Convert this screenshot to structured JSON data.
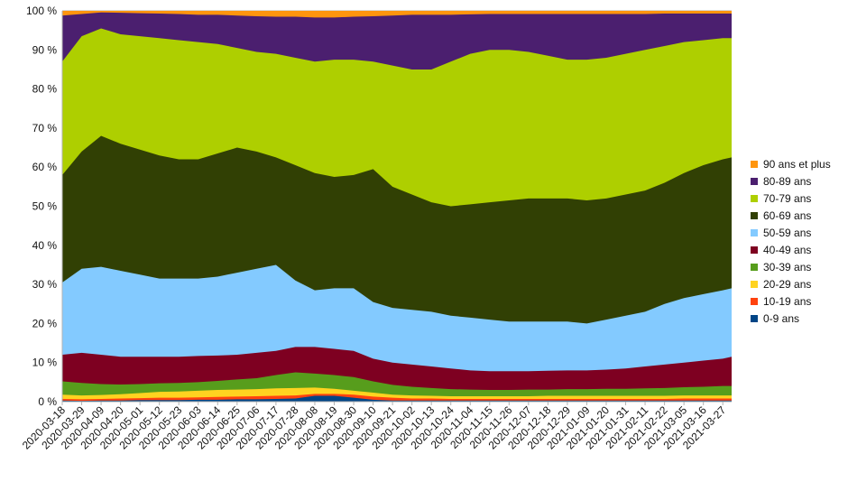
{
  "chart_data": {
    "type": "area",
    "stacked": true,
    "normalized": true,
    "grid": true,
    "legend_position": "right",
    "ylim": [
      0,
      100
    ],
    "y_ticks": [
      "0 %",
      "10 %",
      "20 %",
      "30 %",
      "40 %",
      "50 %",
      "60 %",
      "70 %",
      "80 %",
      "90 %",
      "100 %"
    ],
    "x_ticks": [
      "2020-03-18",
      "2020-03-29",
      "2020-04-09",
      "2020-04-20",
      "2020-05-01",
      "2020-05-12",
      "2020-05-23",
      "2020-06-03",
      "2020-06-14",
      "2020-06-25",
      "2020-07-06",
      "2020-07-17",
      "2020-07-28",
      "2020-08-08",
      "2020-08-19",
      "2020-08-30",
      "2020-09-10",
      "2020-09-21",
      "2020-10-02",
      "2020-10-13",
      "2020-10-24",
      "2020-11-04",
      "2020-11-15",
      "2020-11-26",
      "2020-12-07",
      "2020-12-18",
      "2020-12-29",
      "2021-01-09",
      "2021-01-20",
      "2021-01-31",
      "2021-02-11",
      "2021-02-22",
      "2021-03-05",
      "2021-03-16",
      "2021-03-27"
    ],
    "x": [
      "2020-03-18",
      "2020-03-29",
      "2020-04-09",
      "2020-04-20",
      "2020-05-01",
      "2020-05-12",
      "2020-05-23",
      "2020-06-03",
      "2020-06-14",
      "2020-06-25",
      "2020-07-06",
      "2020-07-17",
      "2020-07-28",
      "2020-08-08",
      "2020-08-19",
      "2020-08-30",
      "2020-09-10",
      "2020-09-21",
      "2020-10-02",
      "2020-10-13",
      "2020-10-24",
      "2020-11-04",
      "2020-11-15",
      "2020-11-26",
      "2020-12-07",
      "2020-12-18",
      "2020-12-29",
      "2021-01-09",
      "2021-01-20",
      "2021-01-31",
      "2021-02-11",
      "2021-02-22",
      "2021-03-05",
      "2021-03-16",
      "2021-03-27",
      "2021-04-01"
    ],
    "cumulative_boundaries_percent": [
      {
        "name": "0-9 ans",
        "values": [
          0.3,
          0.2,
          0.3,
          0.3,
          0.4,
          0.4,
          0.4,
          0.5,
          0.5,
          0.6,
          0.6,
          0.7,
          0.8,
          1.5,
          1.5,
          1.0,
          0.5,
          0.3,
          0.3,
          0.3,
          0.3,
          0.3,
          0.3,
          0.3,
          0.3,
          0.3,
          0.3,
          0.3,
          0.3,
          0.3,
          0.3,
          0.3,
          0.3,
          0.3,
          0.3,
          0.3
        ]
      },
      {
        "name": "10-19 ans",
        "values": [
          0.7,
          0.6,
          0.7,
          0.8,
          0.9,
          1.0,
          1.0,
          1.1,
          1.2,
          1.3,
          1.4,
          1.5,
          1.6,
          2.0,
          2.0,
          1.8,
          1.3,
          1.0,
          0.8,
          0.8,
          0.7,
          0.7,
          0.7,
          0.7,
          0.7,
          0.7,
          0.7,
          0.7,
          0.7,
          0.7,
          0.7,
          0.7,
          0.8,
          0.8,
          0.8,
          0.8
        ]
      },
      {
        "name": "20-29 ans",
        "values": [
          1.8,
          1.6,
          1.7,
          1.9,
          2.2,
          2.5,
          2.6,
          2.8,
          3.0,
          3.1,
          3.2,
          3.4,
          3.5,
          3.6,
          3.3,
          2.8,
          2.3,
          1.8,
          1.6,
          1.5,
          1.4,
          1.4,
          1.4,
          1.4,
          1.4,
          1.5,
          1.5,
          1.5,
          1.5,
          1.5,
          1.5,
          1.5,
          1.6,
          1.6,
          1.6,
          1.6
        ]
      },
      {
        "name": "30-39 ans",
        "values": [
          5.2,
          4.8,
          4.5,
          4.4,
          4.5,
          4.7,
          4.8,
          5.0,
          5.3,
          5.7,
          6.0,
          6.8,
          7.5,
          7.2,
          6.8,
          6.3,
          5.2,
          4.3,
          3.8,
          3.5,
          3.2,
          3.1,
          3.0,
          3.0,
          3.1,
          3.1,
          3.2,
          3.2,
          3.3,
          3.3,
          3.4,
          3.5,
          3.7,
          3.8,
          4.0,
          4.0
        ]
      },
      {
        "name": "40-49 ans",
        "values": [
          12.0,
          12.5,
          12.0,
          11.5,
          11.5,
          11.5,
          11.5,
          11.7,
          11.8,
          12.0,
          12.5,
          13.0,
          14.0,
          14.0,
          13.5,
          13.0,
          11.0,
          10.0,
          9.5,
          9.0,
          8.5,
          8.0,
          7.8,
          7.8,
          7.8,
          7.9,
          8.0,
          8.0,
          8.2,
          8.5,
          9.0,
          9.5,
          10.0,
          10.5,
          11.0,
          11.5
        ]
      },
      {
        "name": "50-59 ans",
        "values": [
          30.5,
          34.0,
          34.5,
          33.5,
          32.5,
          31.5,
          31.5,
          31.5,
          32.0,
          33.0,
          34.0,
          35.0,
          31.0,
          28.5,
          29.0,
          29.0,
          25.5,
          24.0,
          23.5,
          23.0,
          22.0,
          21.5,
          21.0,
          20.5,
          20.5,
          20.5,
          20.5,
          20.0,
          21.0,
          22.0,
          23.0,
          25.0,
          26.5,
          27.5,
          28.5,
          29.0
        ]
      },
      {
        "name": "60-69 ans",
        "values": [
          58.0,
          64.0,
          68.0,
          66.0,
          64.5,
          63.0,
          62.0,
          62.0,
          63.5,
          65.0,
          64.0,
          62.5,
          60.5,
          58.5,
          57.5,
          58.0,
          59.5,
          55.0,
          53.0,
          51.0,
          50.0,
          50.5,
          51.0,
          51.5,
          52.0,
          52.0,
          52.0,
          51.5,
          52.0,
          53.0,
          54.0,
          56.0,
          58.5,
          60.5,
          62.0,
          62.5
        ]
      },
      {
        "name": "70-79 ans",
        "values": [
          87.0,
          93.5,
          95.5,
          94.0,
          93.5,
          93.0,
          92.5,
          92.0,
          91.5,
          90.5,
          89.5,
          89.0,
          88.0,
          87.0,
          87.5,
          87.5,
          87.0,
          86.0,
          85.0,
          85.0,
          87.0,
          89.0,
          90.0,
          90.0,
          89.5,
          88.5,
          87.5,
          87.5,
          88.0,
          89.0,
          90.0,
          91.0,
          92.0,
          92.5,
          93.0,
          93.0
        ]
      },
      {
        "name": "80-89 ans",
        "values": [
          98.8,
          99.2,
          99.6,
          99.5,
          99.4,
          99.3,
          99.2,
          99.0,
          99.0,
          98.8,
          98.6,
          98.5,
          98.5,
          98.3,
          98.3,
          98.5,
          98.6,
          98.8,
          99.0,
          99.0,
          99.0,
          99.1,
          99.2,
          99.2,
          99.2,
          99.2,
          99.2,
          99.2,
          99.2,
          99.2,
          99.2,
          99.3,
          99.3,
          99.3,
          99.3,
          99.3
        ]
      },
      {
        "name": "90 ans et plus",
        "values": [
          100,
          100,
          100,
          100,
          100,
          100,
          100,
          100,
          100,
          100,
          100,
          100,
          100,
          100,
          100,
          100,
          100,
          100,
          100,
          100,
          100,
          100,
          100,
          100,
          100,
          100,
          100,
          100,
          100,
          100,
          100,
          100,
          100,
          100,
          100,
          100
        ]
      }
    ],
    "series_colors": {
      "0-9 ans": "#004586",
      "10-19 ans": "#ff420e",
      "20-29 ans": "#ffd320",
      "30-39 ans": "#579d1c",
      "40-49 ans": "#7e0021",
      "50-59 ans": "#83caff",
      "60-69 ans": "#314004",
      "70-79 ans": "#aecf00",
      "80-89 ans": "#4b1f6f",
      "90 ans et plus": "#ff950e"
    },
    "legend": [
      "90 ans et plus",
      "80-89 ans",
      "70-79 ans",
      "60-69 ans",
      "50-59 ans",
      "40-49 ans",
      "30-39 ans",
      "20-29 ans",
      "10-19 ans",
      "0-9 ans"
    ]
  }
}
